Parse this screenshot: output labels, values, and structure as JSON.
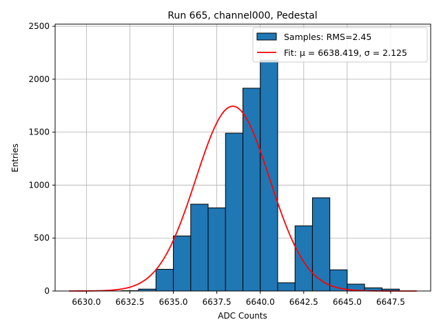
{
  "chart_data": {
    "type": "bar",
    "title": "Run 665, channel000, Pedestal",
    "xlabel": "ADC Counts",
    "ylabel": "Entries",
    "xlim": [
      6628.2,
      6649.8
    ],
    "ylim": [
      0,
      2520
    ],
    "grid": true,
    "legend_position": "top-right",
    "x_ticks": [
      6630.0,
      6632.5,
      6635.0,
      6637.5,
      6640.0,
      6642.5,
      6645.0,
      6647.5
    ],
    "x_tick_labels": [
      "6630.0",
      "6632.5",
      "6635.0",
      "6637.5",
      "6640.0",
      "6642.5",
      "6645.0",
      "6647.5"
    ],
    "y_ticks": [
      0,
      500,
      1000,
      1500,
      2000,
      2500
    ],
    "y_tick_labels": [
      "0",
      "500",
      "1000",
      "1500",
      "2000",
      "2500"
    ],
    "bin_width": 1,
    "bins": [
      {
        "x": 6632,
        "value": 3
      },
      {
        "x": 6633,
        "value": 18
      },
      {
        "x": 6634,
        "value": 205
      },
      {
        "x": 6635,
        "value": 520
      },
      {
        "x": 6636,
        "value": 820
      },
      {
        "x": 6637,
        "value": 785
      },
      {
        "x": 6638,
        "value": 1490
      },
      {
        "x": 6639,
        "value": 1915
      },
      {
        "x": 6640,
        "value": 2180
      },
      {
        "x": 6641,
        "value": 78
      },
      {
        "x": 6642,
        "value": 615
      },
      {
        "x": 6643,
        "value": 880
      },
      {
        "x": 6644,
        "value": 200
      },
      {
        "x": 6645,
        "value": 65
      },
      {
        "x": 6646,
        "value": 30
      },
      {
        "x": 6647,
        "value": 18
      }
    ],
    "fit": {
      "mu": 6638.419,
      "sigma": 2.125,
      "amplitude": 1745,
      "x_range": [
        6629,
        6649
      ],
      "color": "#ff0000"
    },
    "bar_color": "#1f77b4",
    "bar_edge_color": "#000000",
    "legend": [
      {
        "label": "Samples: RMS=2.45",
        "kind": "patch",
        "color": "#1f77b4"
      },
      {
        "label": "Fit: μ = 6638.419, σ = 2.125",
        "kind": "line",
        "color": "#ff0000"
      }
    ]
  }
}
